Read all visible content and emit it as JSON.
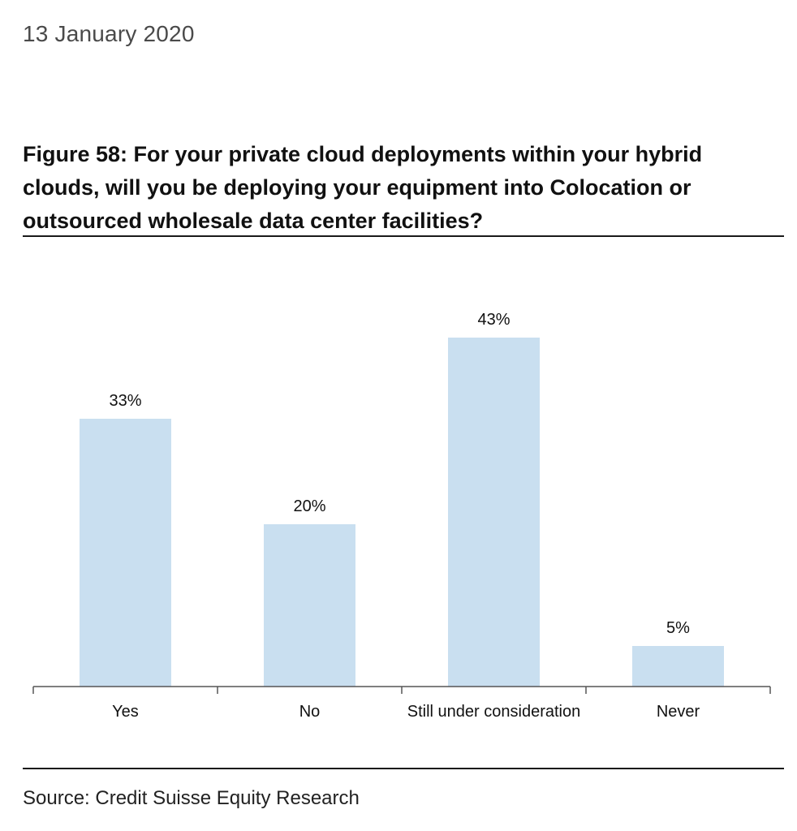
{
  "header": {
    "date": "13 January 2020"
  },
  "figure": {
    "title": "Figure 58: For your private cloud deployments within your hybrid clouds, will you be deploying your equipment into Colocation or outsourced wholesale data center facilities?",
    "source": "Source: Credit Suisse Equity Research"
  },
  "colors": {
    "bar": "#c9dff0",
    "axis": "#555555",
    "text": "#111111"
  },
  "chart_data": {
    "type": "bar",
    "title": "Figure 58: For your private cloud deployments within your hybrid clouds, will you be deploying your equipment into Colocation or outsourced wholesale data center facilities?",
    "categories": [
      "Yes",
      "No",
      "Still under consideration",
      "Never"
    ],
    "values": [
      33,
      20,
      43,
      5
    ],
    "data_labels": [
      "33%",
      "20%",
      "43%",
      "5%"
    ],
    "unit": "%",
    "xlabel": "",
    "ylabel": "",
    "ylim": [
      0,
      50
    ],
    "grid": false,
    "legend": "none"
  }
}
